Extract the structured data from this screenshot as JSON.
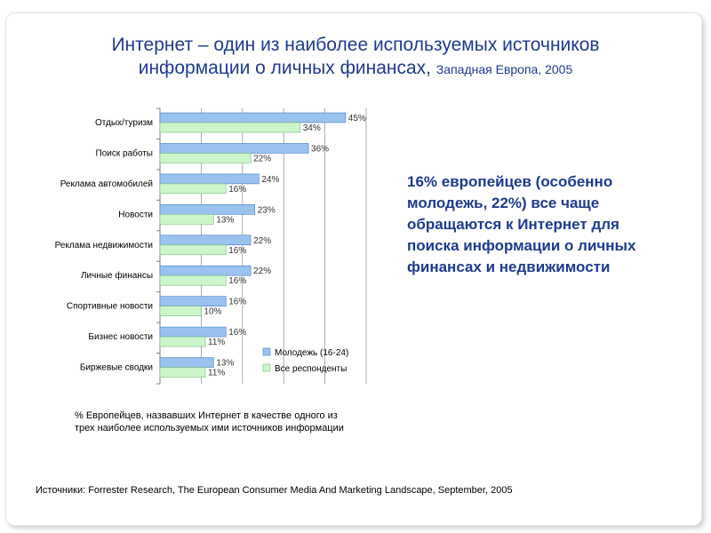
{
  "title": {
    "line1": "Интернет – один из наиболее используемых источников",
    "line2_main": "информации о личных финансах,",
    "line2_sub": "Западная Европа, 2005"
  },
  "callout": "16% европейцев (особенно молодежь, 22%) все чаще обращаются к Интернет для поиска информации о личных финансах и недвижимости",
  "note": "% Европейцев, назвавших Интернет в качестве одного из трех наиболее используемых ими источников информации",
  "source": "Источники: Forrester Research, The European Consumer Media And Marketing Landscape, September, 2005",
  "colors": {
    "title": "#1f3a8f",
    "bar_youth": "#99c2ee",
    "bar_youth_edge": "#4a7fc8",
    "bar_all": "#ccf5cc",
    "bar_all_edge": "#7bbf7b",
    "grid": "#999999"
  },
  "chart_data": {
    "type": "bar",
    "orientation": "horizontal",
    "title": "",
    "xlabel": "",
    "ylabel": "",
    "xlim": [
      0,
      50
    ],
    "grid": true,
    "legend_position": "bottom-right",
    "categories": [
      "Отдых/туризм",
      "Поиск работы",
      "Реклама автомобилей",
      "Новости",
      "Реклама недвижимости",
      "Личные финансы",
      "Спортивные новости",
      "Бизнес новости",
      "Биржевые сводки"
    ],
    "series": [
      {
        "name": "Молодежь (16-24)",
        "values": [
          45,
          36,
          24,
          23,
          22,
          22,
          16,
          16,
          13
        ],
        "labels": [
          "45%",
          "36%",
          "24%",
          "23%",
          "22%",
          "22%",
          "16%",
          "16%",
          "13%"
        ]
      },
      {
        "name": "Все респонденты",
        "values": [
          34,
          22,
          16,
          13,
          16,
          16,
          10,
          11,
          11
        ],
        "labels": [
          "34%",
          "22%",
          "16%",
          "13%",
          "16%",
          "16%",
          "10%",
          "11%",
          "11%"
        ]
      }
    ]
  }
}
